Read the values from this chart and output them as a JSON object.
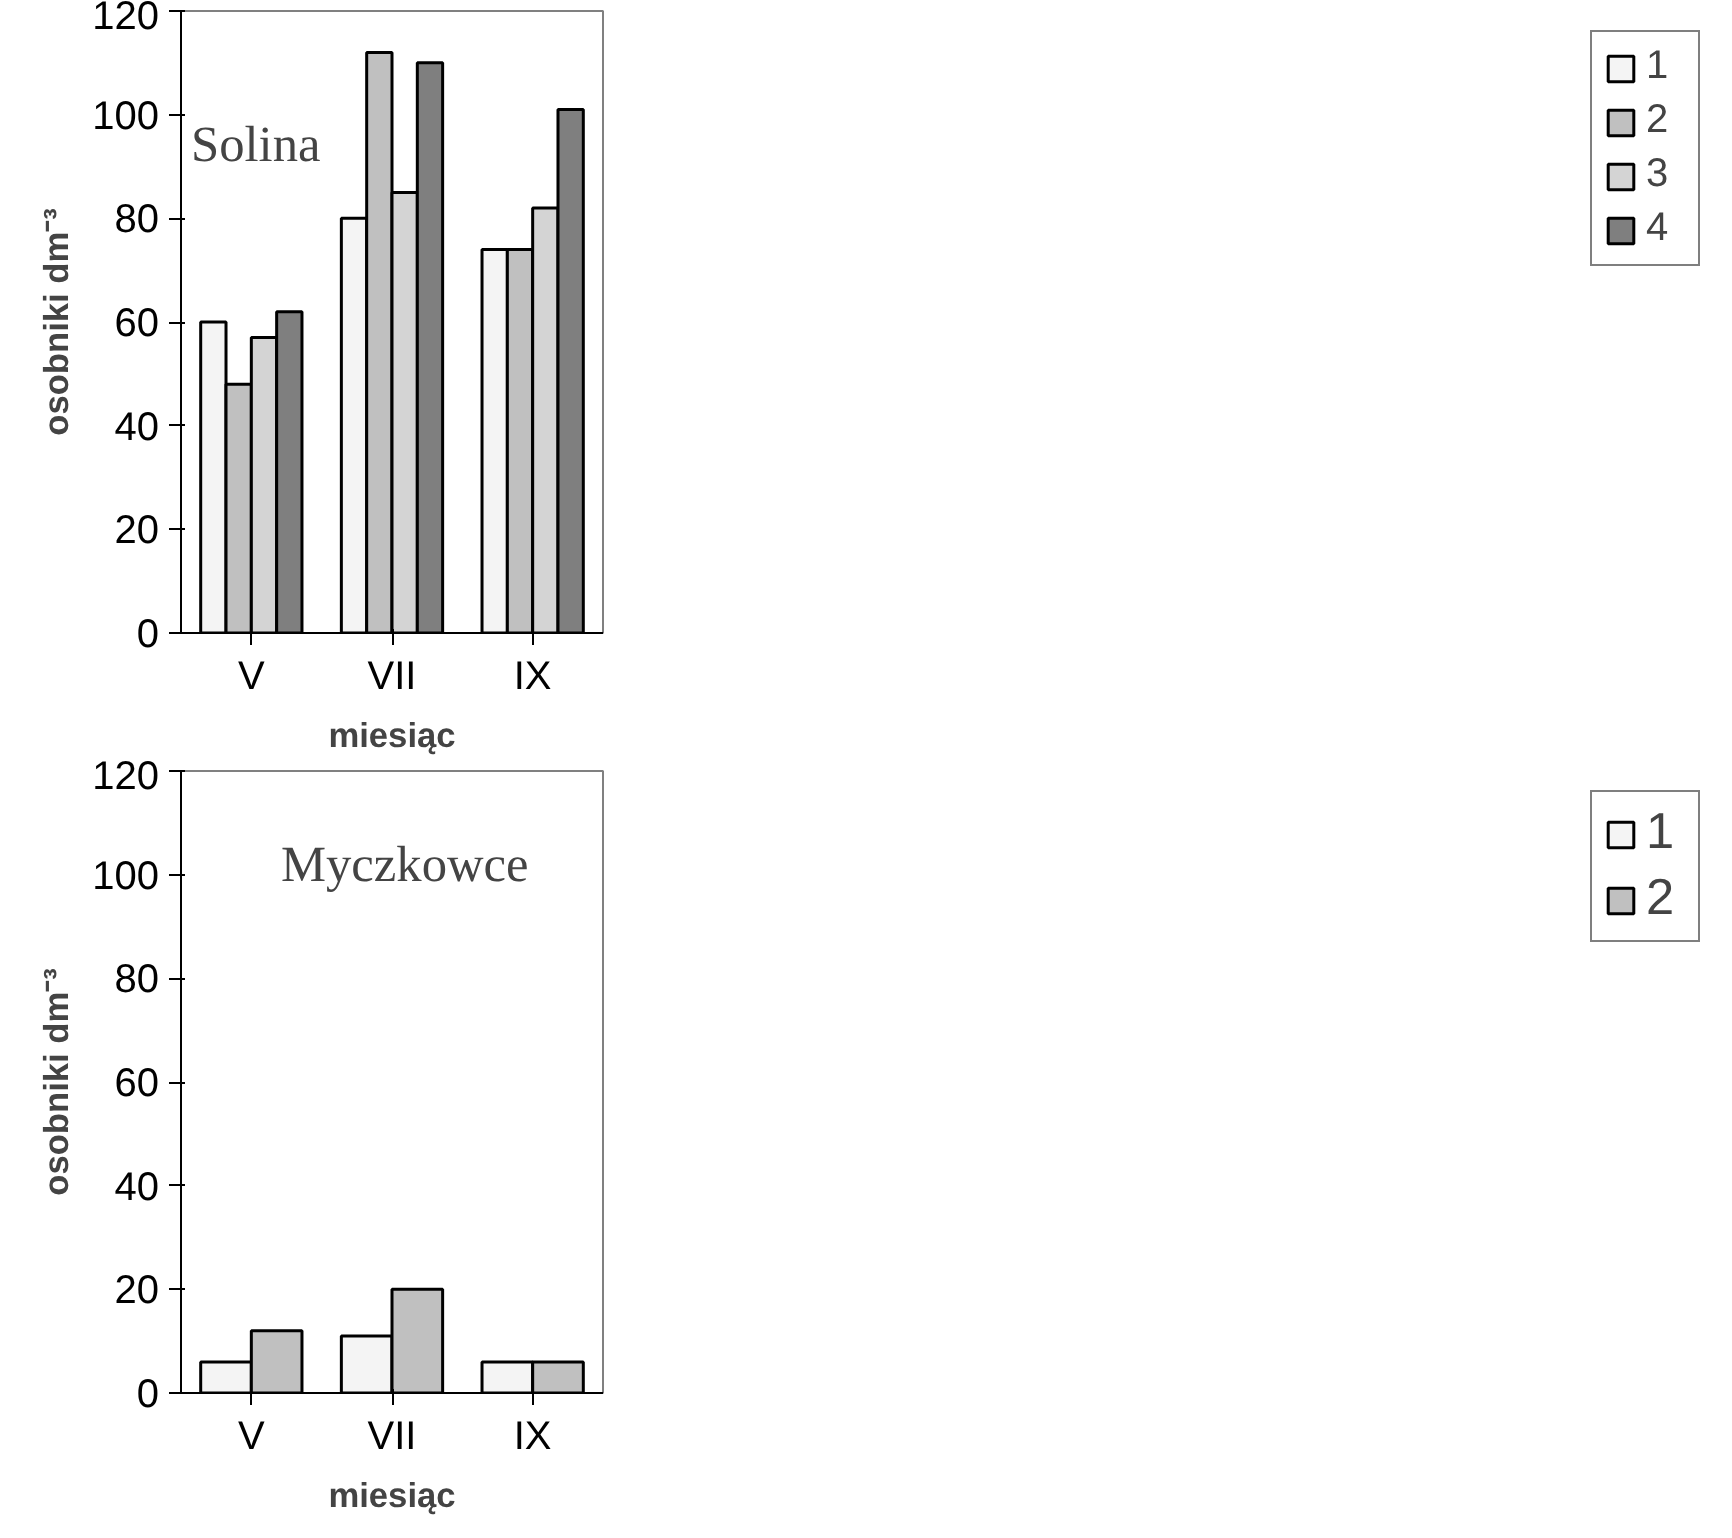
{
  "chart_data": [
    {
      "type": "bar",
      "categories": [
        "V",
        "VII",
        "IX"
      ],
      "xlabel": "miesiąc",
      "ylabel": "osobniki dm⁻³",
      "annotations": [
        "Solina"
      ],
      "ylim": [
        0,
        120
      ],
      "yticks": [
        0,
        20,
        40,
        60,
        80,
        100,
        120
      ],
      "grid": false,
      "legend": "right",
      "series": [
        {
          "name": "1",
          "color": "#f4f4f4",
          "values": [
            60,
            80,
            74
          ]
        },
        {
          "name": "2",
          "color": "#c0c0c0",
          "values": [
            48,
            112,
            74
          ]
        },
        {
          "name": "3",
          "color": "#d4d4d4",
          "values": [
            57,
            85,
            82
          ]
        },
        {
          "name": "4",
          "color": "#7f7f7f",
          "values": [
            62,
            110,
            101
          ]
        }
      ]
    },
    {
      "type": "bar",
      "categories": [
        "V",
        "VII",
        "IX"
      ],
      "xlabel": "miesiąc",
      "ylabel": "osobniki dm⁻³",
      "annotations": [
        "Myczkowce"
      ],
      "ylim": [
        0,
        120
      ],
      "yticks": [
        0,
        20,
        40,
        60,
        80,
        100,
        120
      ],
      "grid": false,
      "legend": "right",
      "series": [
        {
          "name": "1",
          "color": "#f4f4f4",
          "values": [
            6,
            11,
            6
          ]
        },
        {
          "name": "2",
          "color": "#c0c0c0",
          "values": [
            12,
            20,
            6
          ]
        }
      ]
    }
  ]
}
